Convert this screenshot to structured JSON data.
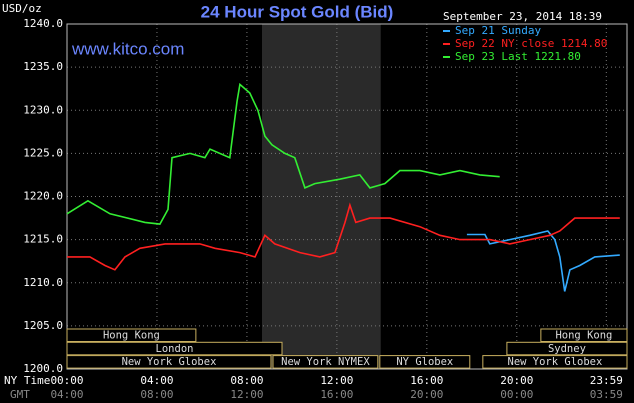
{
  "chart_data": {
    "type": "line",
    "title": "24 Hour Spot Gold (Bid)",
    "source": "www.kitco.com",
    "y_unit": "USD/oz",
    "timestamp": "September 23, 2014 18:39",
    "x_label": "NY Time",
    "x2_label": "GMT",
    "xlim": [
      0,
      24.9
    ],
    "ylim": [
      1200,
      1240
    ],
    "yticks": [
      {
        "value": 1200,
        "label": "1200.0"
      },
      {
        "value": 1205,
        "label": "1205.0"
      },
      {
        "value": 1210,
        "label": "1210.0"
      },
      {
        "value": 1215,
        "label": "1215.0"
      },
      {
        "value": 1220,
        "label": "1220.0"
      },
      {
        "value": 1225,
        "label": "1225.0"
      },
      {
        "value": 1230,
        "label": "1230.0"
      },
      {
        "value": 1235,
        "label": "1235.0"
      },
      {
        "value": 1240,
        "label": "1240.0"
      }
    ],
    "xticks": [
      {
        "value": 0,
        "label": "00:00"
      },
      {
        "value": 4,
        "label": "04:00"
      },
      {
        "value": 8,
        "label": "08:00"
      },
      {
        "value": 12,
        "label": "12:00"
      },
      {
        "value": 16,
        "label": "16:00"
      },
      {
        "value": 20,
        "label": "20:00"
      },
      {
        "value": 23.98,
        "label": "23:59"
      }
    ],
    "x2ticks": [
      "04:00",
      "08:00",
      "12:00",
      "16:00",
      "20:00",
      "00:00",
      "03:59"
    ],
    "grid": true,
    "shaded_x": [
      8.67,
      13.95
    ],
    "sessions": [
      {
        "label": "Hong Kong",
        "start": 0,
        "end": 5.73,
        "row": 1
      },
      {
        "label": "London",
        "start": 0,
        "end": 9.56,
        "row": 2
      },
      {
        "label": "New York Globex",
        "start": 0,
        "end": 9.07,
        "row": 3
      },
      {
        "label": "New York NYMEX",
        "start": 9.16,
        "end": 13.82,
        "row": 3
      },
      {
        "label": "NY Globex",
        "start": 13.91,
        "end": 17.91,
        "row": 3
      },
      {
        "label": "Hong Kong",
        "start": 21.07,
        "end": 24.9,
        "row": 1
      },
      {
        "label": "Sydney",
        "start": 19.56,
        "end": 24.9,
        "row": 2
      },
      {
        "label": "New York Globex",
        "start": 18.49,
        "end": 24.9,
        "row": 3
      }
    ],
    "series": [
      {
        "name": "Sep 21 Sunday",
        "color": "#33aaff",
        "x": [
          17.78,
          18.58,
          18.8,
          19.69,
          20.58,
          21.38,
          21.69,
          21.91,
          22.13,
          22.36,
          22.8,
          23.47,
          24.58
        ],
        "values": [
          1215.6,
          1215.6,
          1214.5,
          1215,
          1215.5,
          1216,
          1215,
          1213,
          1209,
          1211.5,
          1212,
          1213,
          1213.2
        ]
      },
      {
        "name": "Sep 22 NY close 1214.80",
        "color": "#ff2020",
        "x": [
          0,
          1.02,
          1.69,
          2.13,
          2.58,
          3.24,
          4.36,
          5.91,
          6.58,
          7.69,
          8.36,
          8.8,
          9.24,
          10.36,
          11.24,
          11.91,
          12.36,
          12.58,
          12.84,
          13.47,
          14.36,
          15.69,
          16.58,
          17.47,
          18.8,
          19.69,
          20.58,
          21.47,
          21.91,
          22.58,
          23.24,
          24.58
        ],
        "values": [
          1213,
          1213,
          1212,
          1211.5,
          1213,
          1214,
          1214.5,
          1214.5,
          1214,
          1213.5,
          1213,
          1215.5,
          1214.5,
          1213.5,
          1213,
          1213.5,
          1217,
          1219,
          1217,
          1217.5,
          1217.5,
          1216.5,
          1215.5,
          1215,
          1215,
          1214.5,
          1215,
          1215.5,
          1216,
          1217.5,
          1217.5,
          1217.5
        ]
      },
      {
        "name": "Sep 23 Last 1221.80",
        "color": "#33ee33",
        "x": [
          0,
          0.93,
          1.91,
          3.47,
          4.13,
          4.49,
          4.67,
          5.47,
          6.13,
          6.36,
          7.24,
          7.56,
          7.69,
          8.13,
          8.49,
          8.8,
          9.11,
          9.69,
          10.13,
          10.58,
          11.02,
          12.13,
          13.02,
          13.47,
          14.13,
          14.8,
          15.69,
          16.58,
          17.47,
          18.36,
          19.24
        ],
        "values": [
          1218,
          1219.5,
          1218,
          1217,
          1216.8,
          1218.5,
          1224.5,
          1225,
          1224.5,
          1225.5,
          1224.5,
          1231,
          1233,
          1232,
          1230,
          1227,
          1226,
          1225,
          1224.5,
          1221,
          1221.5,
          1222,
          1222.5,
          1221,
          1221.5,
          1223,
          1223,
          1222.5,
          1223,
          1222.5,
          1222.3
        ]
      }
    ]
  }
}
